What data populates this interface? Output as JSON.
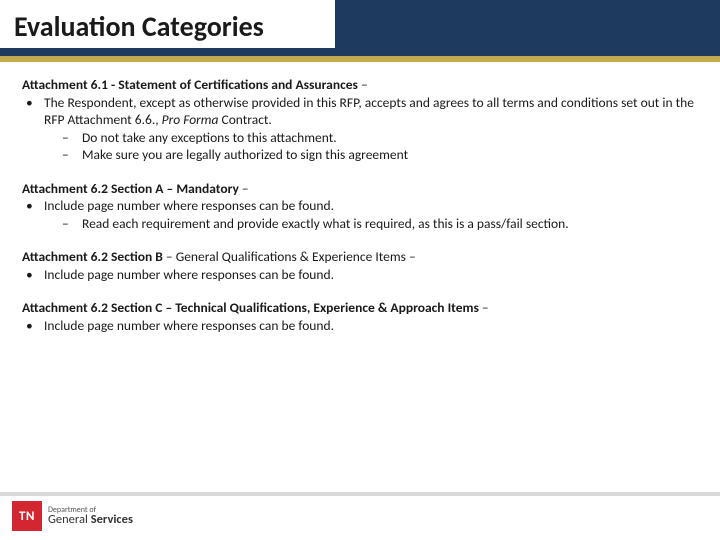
{
  "colors": {
    "header_bg": "#1f3a5f",
    "gold": "#c5a94f",
    "tn_red": "#d22630",
    "text": "#1a1a1a"
  },
  "title": "Evaluation Categories",
  "sections": [
    {
      "heading": "Attachment 6.1 - Statement of Certifications and Assurances",
      "trail": " –",
      "bullet_pre": "The Respondent, except as otherwise provided in this RFP, accepts and agrees to all terms and conditions set out in the RFP Attachment 6.6., ",
      "bullet_italic": "Pro Forma",
      "bullet_post": " Contract.",
      "subs": [
        "Do not take any exceptions to this attachment.",
        "Make sure you are legally authorized to sign this agreement"
      ]
    },
    {
      "heading": "Attachment 6.2 Section A – Mandatory",
      "trail": " –",
      "bullet_pre": "Include page number where responses can be found.",
      "bullet_italic": "",
      "bullet_post": "",
      "subs": [
        "Read each requirement and provide exactly what is required, as this is a pass/fail section."
      ]
    },
    {
      "heading": "Attachment 6.2 Section B",
      "trail": " – General Qualifications & Experience Items –",
      "bullet_pre": "Include page number where responses can be found.",
      "bullet_italic": "",
      "bullet_post": "",
      "subs": []
    },
    {
      "heading": "Attachment 6.2 Section C – Technical Qualifications, Experience & Approach Items",
      "trail": " –",
      "bullet_pre": "Include page number where responses can be found.",
      "bullet_italic": "",
      "bullet_post": "",
      "subs": []
    }
  ],
  "footer": {
    "tn": "TN",
    "dept_of": "Department of",
    "dept_name_light": "General",
    "dept_name_bold": "Services"
  }
}
